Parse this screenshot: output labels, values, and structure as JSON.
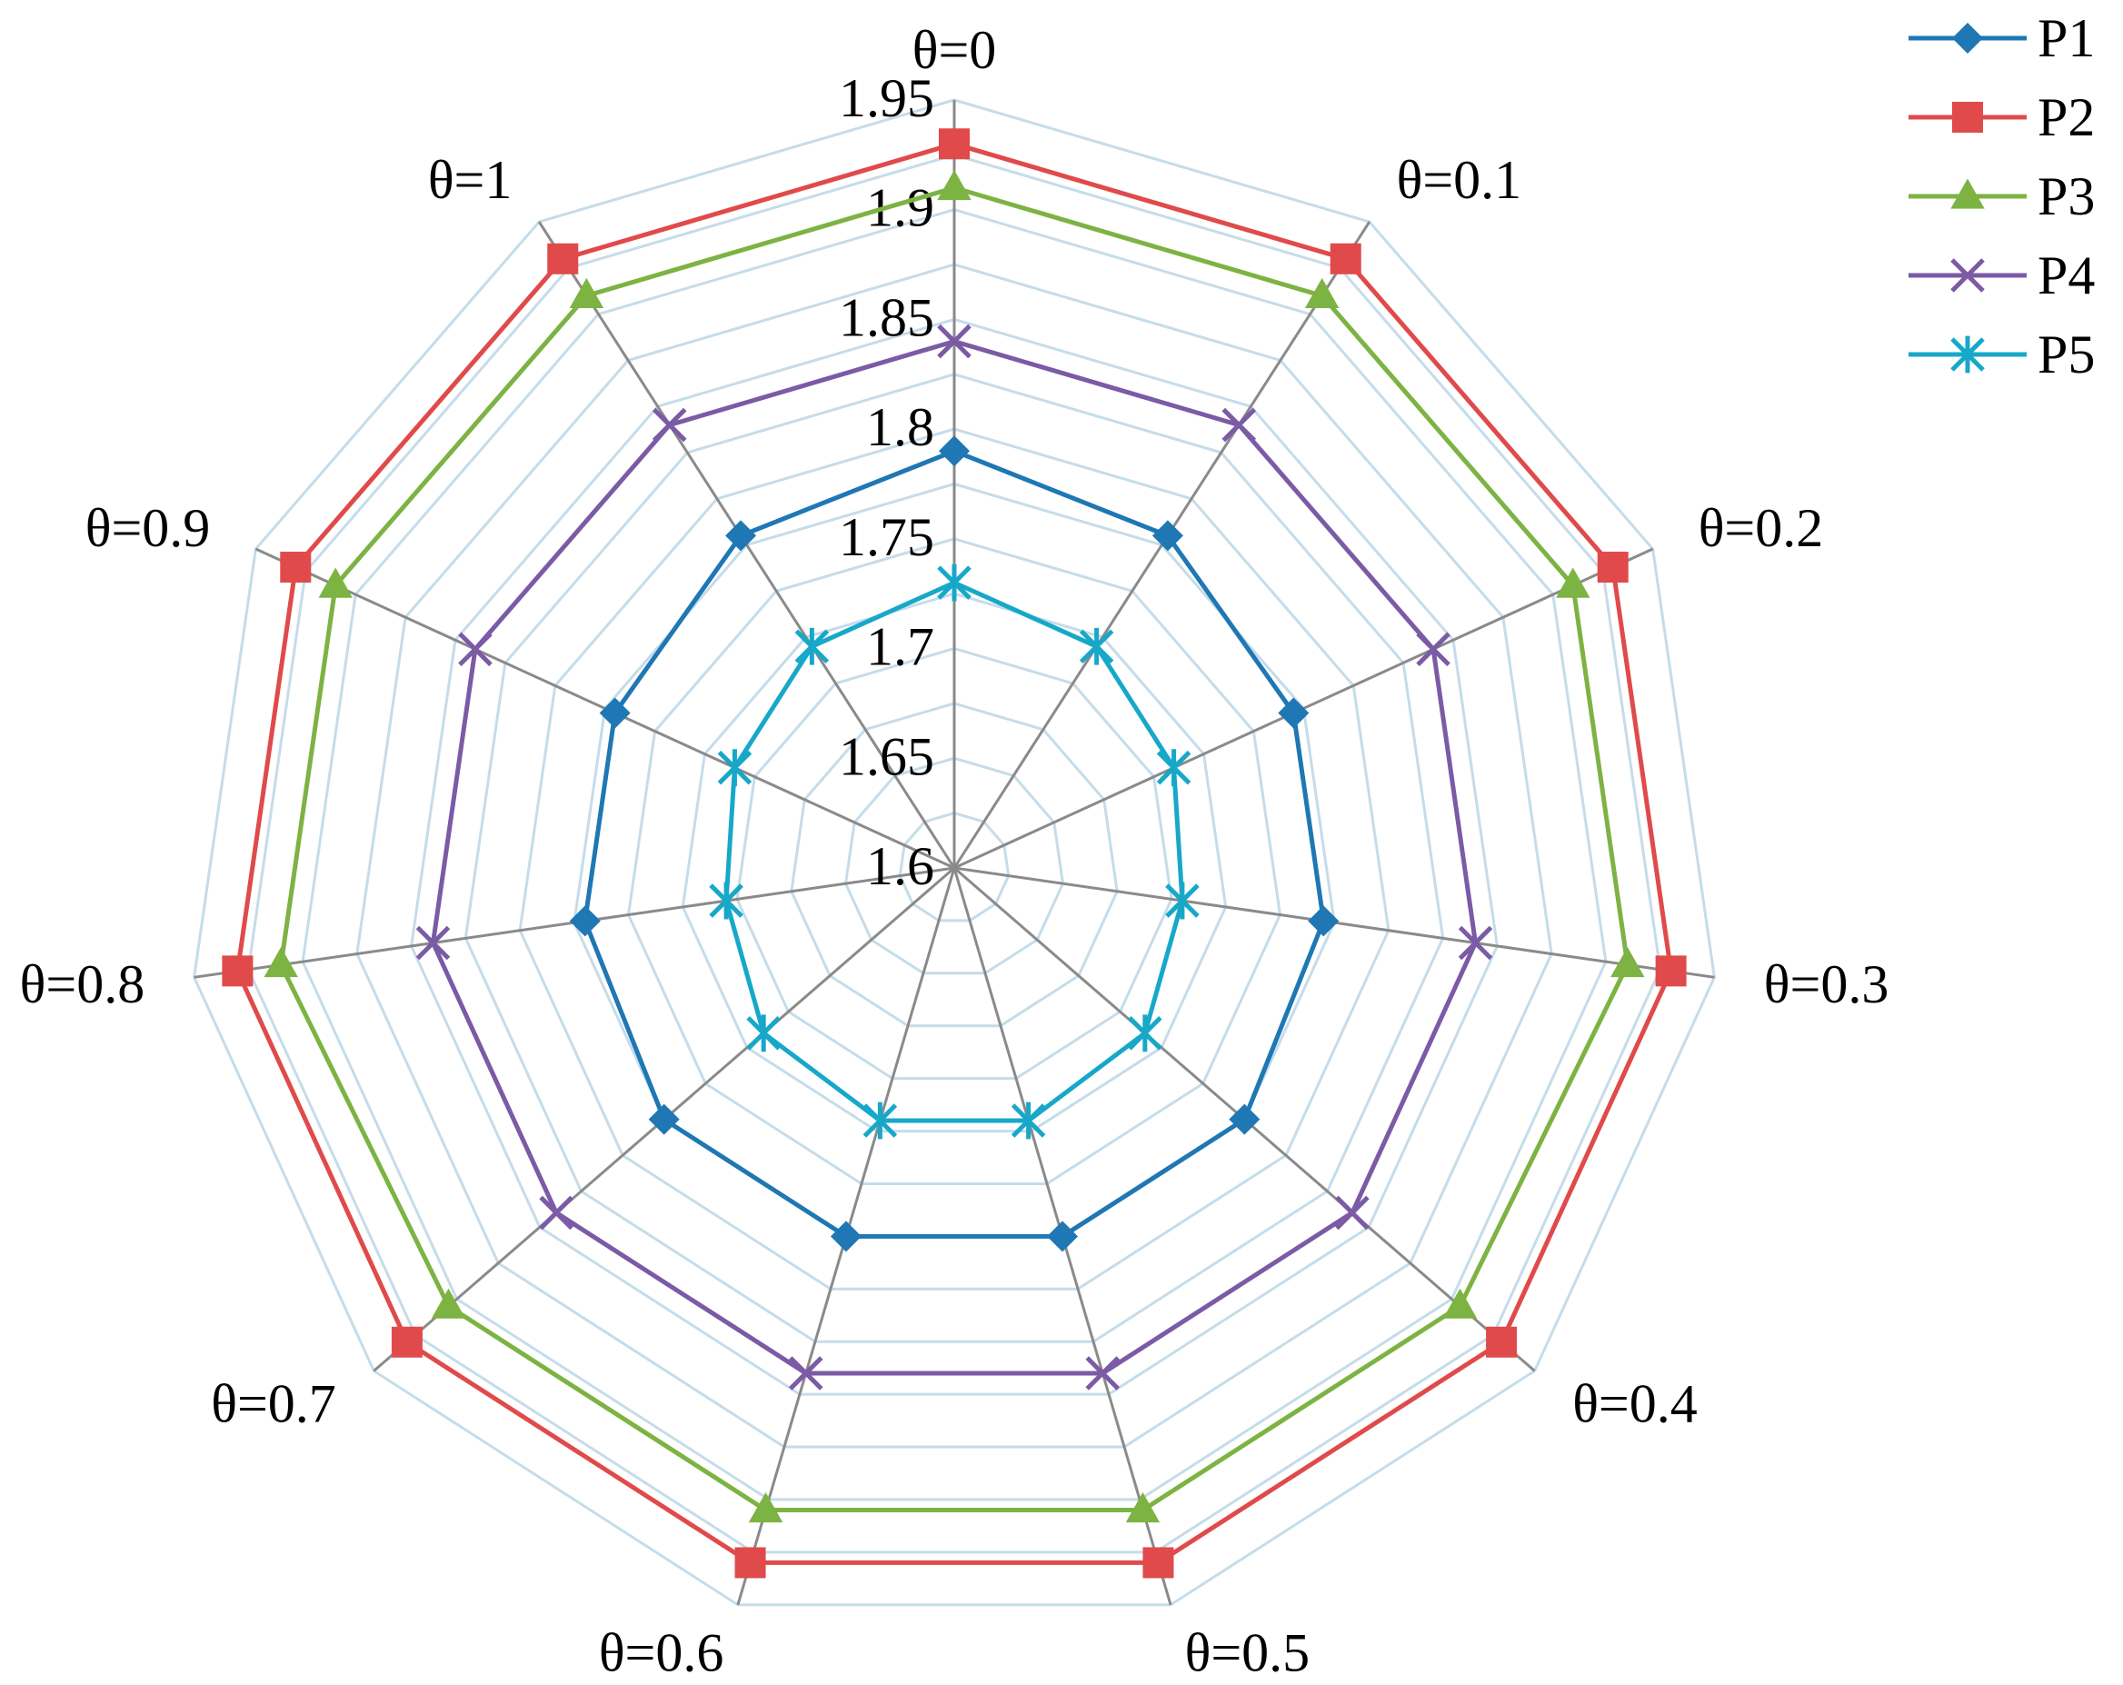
{
  "chart_data": {
    "type": "radar",
    "categories": [
      "θ=0",
      "θ=0.1",
      "θ=0.2",
      "θ=0.3",
      "θ=0.4",
      "θ=0.5",
      "θ=0.6",
      "θ=0.7",
      "θ=0.8",
      "θ=0.9",
      "θ=1"
    ],
    "r_range": [
      1.6,
      1.95
    ],
    "ticks": [
      1.6,
      1.65,
      1.7,
      1.75,
      1.8,
      1.85,
      1.9,
      1.95
    ],
    "tick_labels": [
      "1.6",
      "1.65",
      "1.7",
      "1.75",
      "1.8",
      "1.85",
      "1.9",
      "1.95"
    ],
    "minor_grid_step": 0.025,
    "grid": true,
    "legend_position": "top-right",
    "series": [
      {
        "name": "P1",
        "color": "#1f77b4",
        "marker": "diamond",
        "values": [
          1.79,
          1.78,
          1.77,
          1.77,
          1.775,
          1.775,
          1.775,
          1.775,
          1.77,
          1.77,
          1.78
        ]
      },
      {
        "name": "P2",
        "color": "#e04a4a",
        "marker": "square",
        "values": [
          1.93,
          1.93,
          1.93,
          1.93,
          1.93,
          1.93,
          1.93,
          1.93,
          1.93,
          1.93,
          1.93
        ]
      },
      {
        "name": "P3",
        "color": "#7cb342",
        "marker": "triangle",
        "values": [
          1.91,
          1.91,
          1.91,
          1.91,
          1.905,
          1.905,
          1.905,
          1.905,
          1.91,
          1.91,
          1.91
        ]
      },
      {
        "name": "P4",
        "color": "#7b5aa6",
        "marker": "x",
        "values": [
          1.84,
          1.84,
          1.84,
          1.84,
          1.84,
          1.84,
          1.84,
          1.84,
          1.84,
          1.84,
          1.84
        ]
      },
      {
        "name": "P5",
        "color": "#17a8c9",
        "marker": "asterisk",
        "values": [
          1.73,
          1.72,
          1.71,
          1.705,
          1.715,
          1.72,
          1.72,
          1.715,
          1.705,
          1.71,
          1.72
        ]
      }
    ]
  }
}
